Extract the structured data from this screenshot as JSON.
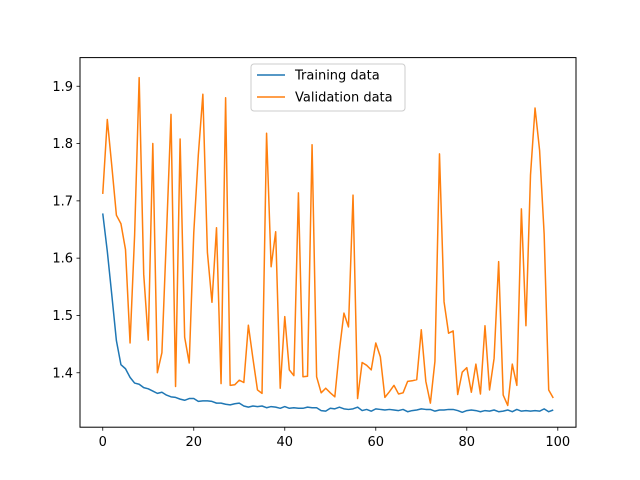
{
  "chart_data": {
    "type": "line",
    "title": "",
    "xlabel": "",
    "ylabel": "",
    "xlim": [
      -5,
      104
    ],
    "ylim": [
      1.305,
      1.95
    ],
    "x_ticks": [
      0,
      20,
      40,
      60,
      80,
      100
    ],
    "y_ticks": [
      1.4,
      1.5,
      1.6,
      1.7,
      1.8,
      1.9
    ],
    "x_tick_labels": [
      "0",
      "20",
      "40",
      "60",
      "80",
      "100"
    ],
    "y_tick_labels": [
      "1.4",
      "1.5",
      "1.6",
      "1.7",
      "1.8",
      "1.9"
    ],
    "grid": false,
    "legend_position": "top-center",
    "x": [
      0,
      1,
      2,
      3,
      4,
      5,
      6,
      7,
      8,
      9,
      10,
      11,
      12,
      13,
      14,
      15,
      16,
      17,
      18,
      19,
      20,
      21,
      22,
      23,
      24,
      25,
      26,
      27,
      28,
      29,
      30,
      31,
      32,
      33,
      34,
      35,
      36,
      37,
      38,
      39,
      40,
      41,
      42,
      43,
      44,
      45,
      46,
      47,
      48,
      49,
      50,
      51,
      52,
      53,
      54,
      55,
      56,
      57,
      58,
      59,
      60,
      61,
      62,
      63,
      64,
      65,
      66,
      67,
      68,
      69,
      70,
      71,
      72,
      73,
      74,
      75,
      76,
      77,
      78,
      79,
      80,
      81,
      82,
      83,
      84,
      85,
      86,
      87,
      88,
      89,
      90,
      91,
      92,
      93,
      94,
      95,
      96,
      97,
      98,
      99
    ],
    "series": [
      {
        "name": "Training data",
        "color": "#1f77b4",
        "values": [
          1.678,
          1.612,
          1.535,
          1.456,
          1.414,
          1.407,
          1.392,
          1.382,
          1.38,
          1.374,
          1.372,
          1.368,
          1.364,
          1.366,
          1.361,
          1.358,
          1.357,
          1.354,
          1.352,
          1.355,
          1.355,
          1.35,
          1.351,
          1.351,
          1.35,
          1.347,
          1.347,
          1.345,
          1.344,
          1.346,
          1.347,
          1.342,
          1.34,
          1.342,
          1.341,
          1.342,
          1.339,
          1.341,
          1.34,
          1.338,
          1.341,
          1.338,
          1.339,
          1.338,
          1.338,
          1.34,
          1.339,
          1.339,
          1.334,
          1.333,
          1.338,
          1.337,
          1.34,
          1.337,
          1.336,
          1.337,
          1.34,
          1.334,
          1.336,
          1.333,
          1.337,
          1.336,
          1.335,
          1.336,
          1.335,
          1.334,
          1.336,
          1.332,
          1.334,
          1.335,
          1.337,
          1.336,
          1.336,
          1.333,
          1.335,
          1.335,
          1.336,
          1.336,
          1.334,
          1.331,
          1.334,
          1.335,
          1.334,
          1.332,
          1.334,
          1.333,
          1.335,
          1.332,
          1.333,
          1.335,
          1.332,
          1.336,
          1.333,
          1.334,
          1.333,
          1.334,
          1.333,
          1.337,
          1.332,
          1.335
        ]
      },
      {
        "name": "Validation data",
        "color": "#ff7f0e",
        "values": [
          1.712,
          1.842,
          1.76,
          1.675,
          1.66,
          1.615,
          1.452,
          1.64,
          1.915,
          1.572,
          1.457,
          1.8,
          1.4,
          1.435,
          1.64,
          1.851,
          1.376,
          1.808,
          1.462,
          1.417,
          1.644,
          1.78,
          1.886,
          1.61,
          1.523,
          1.653,
          1.381,
          1.88,
          1.378,
          1.379,
          1.387,
          1.383,
          1.483,
          1.425,
          1.37,
          1.364,
          1.818,
          1.585,
          1.646,
          1.373,
          1.498,
          1.405,
          1.395,
          1.714,
          1.393,
          1.394,
          1.798,
          1.393,
          1.365,
          1.373,
          1.365,
          1.358,
          1.439,
          1.504,
          1.48,
          1.71,
          1.355,
          1.418,
          1.413,
          1.405,
          1.452,
          1.428,
          1.357,
          1.367,
          1.378,
          1.363,
          1.365,
          1.385,
          1.386,
          1.388,
          1.475,
          1.385,
          1.347,
          1.42,
          1.782,
          1.524,
          1.469,
          1.473,
          1.362,
          1.401,
          1.409,
          1.366,
          1.415,
          1.363,
          1.482,
          1.37,
          1.425,
          1.594,
          1.361,
          1.343,
          1.415,
          1.378,
          1.686,
          1.482,
          1.745,
          1.862,
          1.788,
          1.642,
          1.37,
          1.356
        ]
      }
    ]
  }
}
